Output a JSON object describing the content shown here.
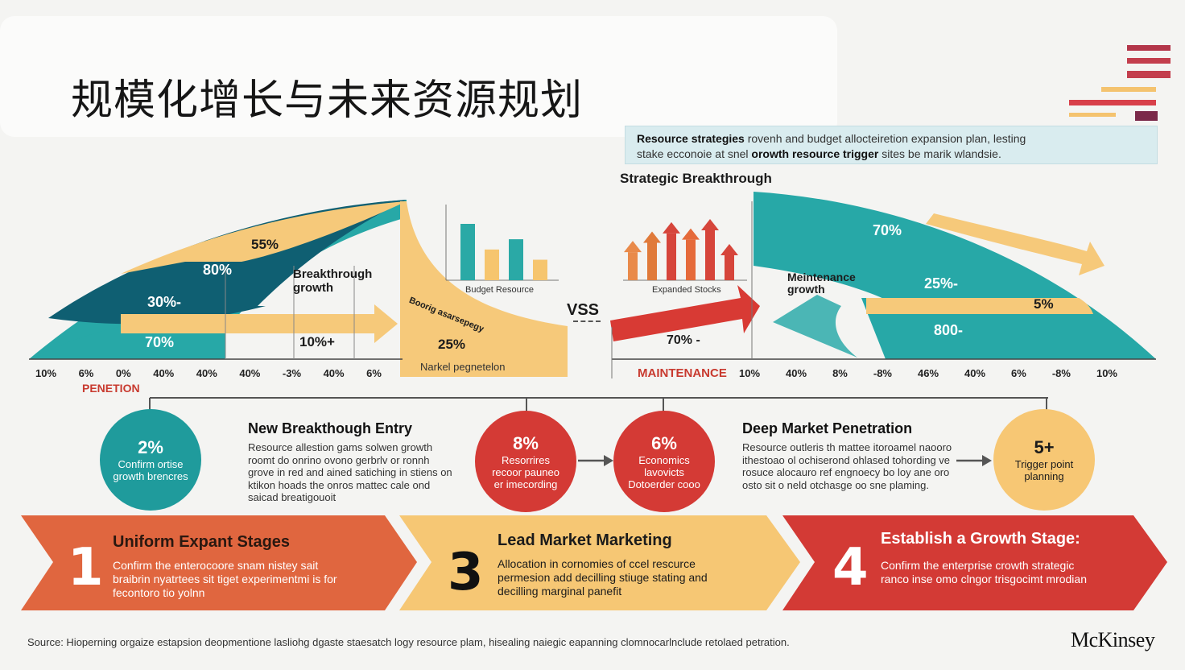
{
  "title": "规模化增长与未来资源规划",
  "legend_box": {
    "line1_bold": "Resource strategies",
    "line1_rest": " rovenh and budget allocteiretion expansion plan, lesting",
    "line2_a": "stake ecconoie at snel ",
    "line2_bold": "orowth resource trigger",
    "line2_rest": " sites be marik wlandsie."
  },
  "left_chart": {
    "labels": {
      "p55": "55%",
      "p80": "80%",
      "p30": "30%-",
      "p70": "70%",
      "breakthrough": "Breakthrough",
      "growth": "growth",
      "p10": "10%+",
      "p25": "25%",
      "diag": "Boorig asarsepegy",
      "market_pen": "Narkel pegnetelon"
    },
    "axis": [
      "10%",
      "6%",
      "0%",
      "40%",
      "40%",
      "40%",
      "-3%",
      "40%",
      "6%"
    ],
    "penetration": "PENETION"
  },
  "mini_bar_left": {
    "caption": "Budget Resource",
    "values": [
      55,
      30,
      40,
      20
    ],
    "colors": [
      "#2aa9a6",
      "#f6c56e",
      "#2aa9a6",
      "#f6c56e"
    ]
  },
  "vs_label": "VSS",
  "mini_bar_right": {
    "caption": "Expanded Stocks",
    "values": [
      45,
      60,
      75,
      65,
      80,
      40
    ],
    "colors": [
      "#e98a4a",
      "#e07a3a",
      "#d6453b",
      "#e56a3a",
      "#d6453b",
      "#d6453b"
    ]
  },
  "strategic_label": "Strategic Breakthrough",
  "right_chart": {
    "labels": {
      "p70": "70%",
      "maint1": "Meintenance",
      "maint2": "growth",
      "p25": "25%-",
      "p5": "5%",
      "p80": "800-",
      "p70b": "70% -"
    },
    "maintenance": "MAINTENANCE",
    "axis": [
      "10%",
      "40%",
      "8%",
      "-8%",
      "46%",
      "40%",
      "6%",
      "-8%",
      "10%"
    ]
  },
  "circles": [
    {
      "num": "2%",
      "text": "Confirm ortise growth brencres",
      "color": "#1f9b9c",
      "text_color": "#ffffff"
    },
    {
      "num": "8%",
      "text": "Resorrires recoor pauneo er imecording",
      "color": "#d43a35",
      "text_color": "#ffffff"
    },
    {
      "num": "6%",
      "text": "Economics lavovicts Dotoerder cooo",
      "color": "#d43a35",
      "text_color": "#ffffff"
    },
    {
      "num": "5+",
      "text": "Trigger point planning",
      "color": "#f7c774",
      "text_color": "#1b1b1b"
    }
  ],
  "sections": [
    {
      "title": "New Breakthough Entry",
      "body": "Resource allestion gams solwen growth roomt do onrino ovono gerbrlv or ronnh grove in red and ained satiching in stiens on ktikon hoads the onros mattec cale ond saicad breatigouoit"
    },
    {
      "title": "Deep Market Penetration",
      "body": "Resource outleris th mattee itoroamel naooro ithestoao ol ochiserond ohlased tohording ve rosuce alocauro ref engnoecy bo loy ane oro osto sit o neld otchasge oo sne plaming."
    }
  ],
  "stages": [
    {
      "num": "1",
      "title": "Uniform Expant Stages",
      "body": "Confirm the enterocoore snam nistey sait braibrin nyatrtees sit tiget experimentmi is for fecontoro tio yolnn",
      "color": "#e0663f"
    },
    {
      "num": "3",
      "title": "Lead Market Marketing",
      "body": "Allocation in cornomies of ccel rescurce permesion add decilling stiuge stating and decilling marginal panefit",
      "color": "#f6c774"
    },
    {
      "num": "4",
      "title": "Establish a Growth Stage:",
      "body": "Confirm the enterprise crowth strategic ranco inse omo clngor trisgocimt mrodian",
      "color": "#d33a35"
    }
  ],
  "footer": "Source: Hioperning orgaize estapsion deopmentione lasliohg dgaste staesatch logy resource plam, hisealing naiegic eapanning clomnocarlnclude retolaed petration.",
  "brand": "McKinsey"
}
